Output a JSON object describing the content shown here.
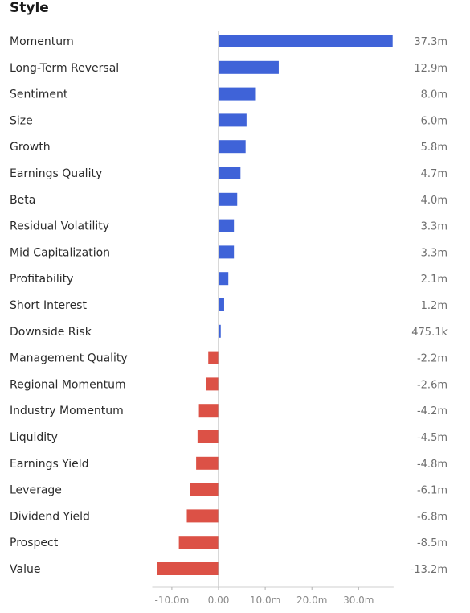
{
  "header": {
    "title": "Style"
  },
  "colors": {
    "positive": "#3f63d8",
    "negative": "#dc5146",
    "axis": "#999999"
  },
  "chart_data": {
    "type": "bar",
    "orientation": "horizontal",
    "categories": [
      "Momentum",
      "Long-Term Reversal",
      "Sentiment",
      "Size",
      "Growth",
      "Earnings Quality",
      "Beta",
      "Residual Volatility",
      "Mid Capitalization",
      "Profitability",
      "Short Interest",
      "Downside Risk",
      "Management Quality",
      "Regional Momentum",
      "Industry Momentum",
      "Liquidity",
      "Earnings Yield",
      "Leverage",
      "Dividend Yield",
      "Prospect",
      "Value"
    ],
    "values": [
      37.3,
      12.9,
      8.0,
      6.0,
      5.8,
      4.7,
      4.0,
      3.3,
      3.3,
      2.1,
      1.2,
      0.4751,
      -2.2,
      -2.6,
      -4.2,
      -4.5,
      -4.8,
      -6.1,
      -6.8,
      -8.5,
      -13.2
    ],
    "value_labels": [
      "37.3m",
      "12.9m",
      "8.0m",
      "6.0m",
      "5.8m",
      "4.7m",
      "4.0m",
      "3.3m",
      "3.3m",
      "2.1m",
      "1.2m",
      "475.1k",
      "-2.2m",
      "-2.6m",
      "-4.2m",
      "-4.5m",
      "-4.8m",
      "-6.1m",
      "-6.8m",
      "-8.5m",
      "-13.2m"
    ],
    "xticks": [
      -10,
      0,
      10,
      20,
      30
    ],
    "xtick_labels": [
      "-10.0m",
      "0.00",
      "10.0m",
      "20.0m",
      "30.0m"
    ],
    "xlim": [
      -14.2,
      37.5
    ],
    "grid": false
  }
}
